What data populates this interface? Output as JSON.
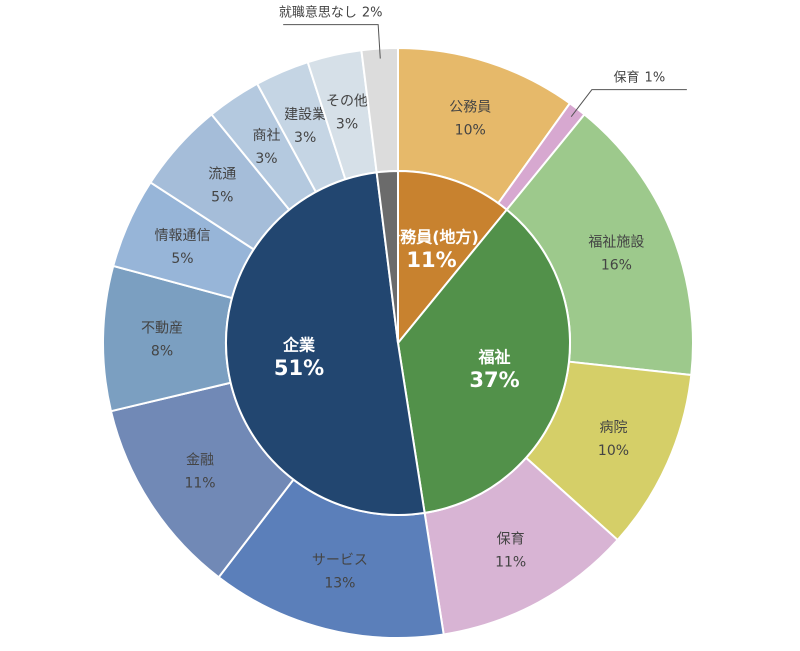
{
  "chart_data": [
    {
      "type": "pie",
      "categories": [
        "公務員(地方)",
        "福祉",
        "企業",
        null
      ],
      "values": [
        11,
        37,
        51,
        2
      ],
      "value_labels": [
        "11%",
        "37%",
        "51%",
        null
      ],
      "colors": [
        "#c8822f",
        "#52914a",
        "#224670",
        "#6b6b6b"
      ]
    },
    {
      "type": "donut",
      "categories": [
        "公務員",
        "保育",
        "福祉施設",
        "病院",
        "保育",
        "サービス",
        "金融",
        "不動産",
        "情報通信",
        "流通",
        "商社",
        "建設業",
        "その他",
        "就職意思なし"
      ],
      "values": [
        10,
        1,
        16,
        10,
        11,
        13,
        11,
        8,
        5,
        5,
        3,
        3,
        3,
        2
      ],
      "value_labels": [
        "10%",
        "1%",
        "16%",
        "10%",
        "11%",
        "13%",
        "11%",
        "8%",
        "5%",
        "5%",
        "3%",
        "3%",
        "3%",
        "2%"
      ],
      "colors": [
        "#e6b96a",
        "#d7a8d0",
        "#9dc98c",
        "#d5cf68",
        "#d8b4d4",
        "#5b7fba",
        "#7189b6",
        "#7b9fc1",
        "#97b5d8",
        "#a5bdd9",
        "#b4c9df",
        "#c5d5e4",
        "#d6e0e8",
        "#dcdcdc"
      ]
    }
  ]
}
